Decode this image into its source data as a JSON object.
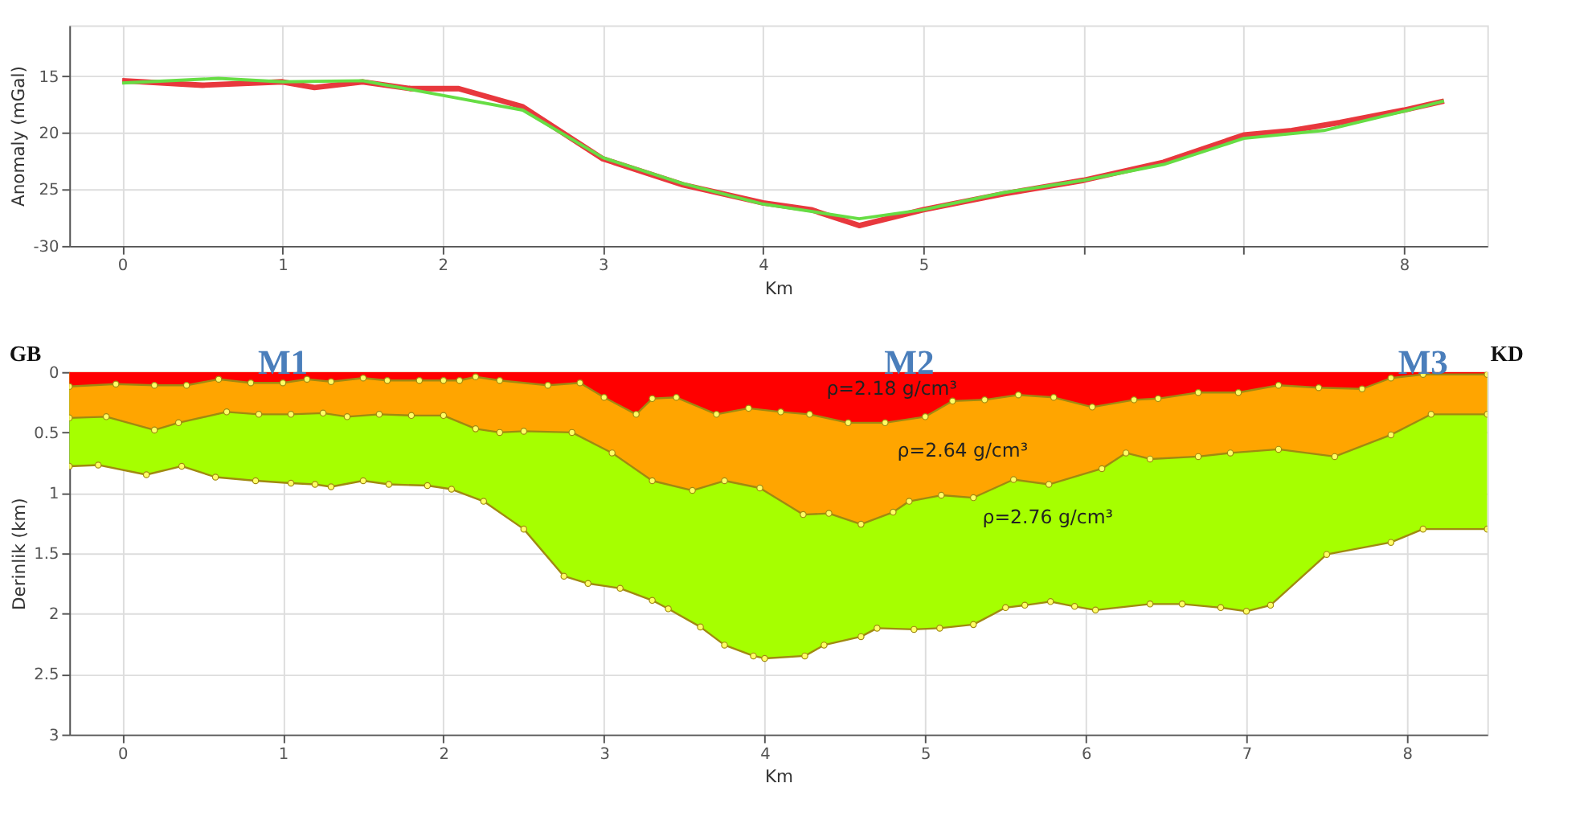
{
  "chart_data": [
    {
      "type": "line",
      "xlabel": "Km",
      "ylabel": "Anomaly (mGal)",
      "xlim": [
        -0.33,
        8.52
      ],
      "ylim": [
        -30,
        -10.5
      ],
      "xticks": [
        0,
        1,
        2,
        3,
        4,
        5,
        {
          "value": 6,
          "label": null
        },
        {
          "value": 7,
          "label": null
        },
        8
      ],
      "yticks": [
        {
          "value": -15,
          "label": "15"
        },
        {
          "value": -20,
          "label": "20"
        },
        {
          "value": -25,
          "label": "25"
        },
        {
          "value": -30,
          "label": "-30"
        }
      ],
      "grid": true,
      "series": [
        {
          "color": "#e8383d",
          "x": [
            0,
            0.5,
            1,
            1.2,
            1.5,
            1.8,
            2.1,
            2.5,
            3,
            3.5,
            4,
            4.3,
            4.6,
            5,
            5.5,
            6,
            6.5,
            7,
            7.3,
            7.6,
            8,
            8.25
          ],
          "values": [
            -15.4,
            -15.8,
            -15.5,
            -16.0,
            -15.5,
            -16.1,
            -16.1,
            -17.7,
            -22.3,
            -24.6,
            -26.2,
            -26.8,
            -28.2,
            -26.8,
            -25.4,
            -24.2,
            -22.6,
            -20.2,
            -19.8,
            -19.1,
            -18.0,
            -17.2
          ]
        },
        {
          "color": "#66dd44",
          "x": [
            0,
            0.6,
            1,
            1.5,
            2,
            2.5,
            3,
            3.5,
            4,
            4.6,
            5,
            5.5,
            6,
            6.5,
            7,
            7.5,
            8,
            8.25
          ],
          "values": [
            -15.6,
            -15.2,
            -15.5,
            -15.4,
            -16.7,
            -18.0,
            -22.2,
            -24.5,
            -26.3,
            -27.6,
            -26.8,
            -25.3,
            -24.2,
            -22.8,
            -20.5,
            -19.8,
            -18.1,
            -17.2
          ]
        }
      ]
    },
    {
      "type": "area",
      "xlabel": "Km",
      "ylabel": "Derinlik (km)",
      "xlim": [
        -0.33,
        8.5
      ],
      "ylim": [
        3,
        0
      ],
      "xticks": [
        0,
        1,
        2,
        3,
        4,
        5,
        6,
        7,
        8
      ],
      "yticks": [
        0,
        0.5,
        1,
        1.5,
        2,
        2.5,
        3
      ],
      "grid": true,
      "marker": "circle",
      "series": [
        {
          "color": "#a6ff00",
          "x": [
            -0.33,
            -0.15,
            0.15,
            0.37,
            0.58,
            0.83,
            1.05,
            1.2,
            1.3,
            1.5,
            1.66,
            1.9,
            2.05,
            2.25,
            2.5,
            2.75,
            2.9,
            3.1,
            3.3,
            3.4,
            3.6,
            3.75,
            3.93,
            4.0,
            4.25,
            4.37,
            4.6,
            4.7,
            4.93,
            5.09,
            5.3,
            5.5,
            5.62,
            5.78,
            5.93,
            6.06,
            6.4,
            6.6,
            6.84,
            7.0,
            7.15,
            7.5,
            7.9,
            8.1,
            8.5
          ],
          "values": [
            0.78,
            0.77,
            0.85,
            0.78,
            0.87,
            0.9,
            0.92,
            0.93,
            0.95,
            0.9,
            0.93,
            0.94,
            0.97,
            1.07,
            1.3,
            1.69,
            1.75,
            1.79,
            1.89,
            1.96,
            2.11,
            2.26,
            2.35,
            2.37,
            2.35,
            2.26,
            2.19,
            2.12,
            2.13,
            2.12,
            2.09,
            1.95,
            1.93,
            1.9,
            1.94,
            1.97,
            1.92,
            1.92,
            1.95,
            1.98,
            1.93,
            1.51,
            1.41,
            1.3,
            1.3
          ]
        },
        {
          "color": "#ffa500",
          "x": [
            -0.33,
            -0.1,
            0.2,
            0.35,
            0.65,
            0.85,
            1.05,
            1.25,
            1.4,
            1.6,
            1.8,
            2.0,
            2.2,
            2.35,
            2.5,
            2.8,
            3.05,
            3.3,
            3.55,
            3.75,
            3.97,
            4.24,
            4.4,
            4.6,
            4.8,
            4.9,
            5.1,
            5.3,
            5.55,
            5.77,
            6.1,
            6.25,
            6.4,
            6.7,
            6.9,
            7.2,
            7.55,
            7.9,
            8.15,
            8.5
          ],
          "values": [
            0.38,
            0.37,
            0.48,
            0.42,
            0.33,
            0.35,
            0.35,
            0.34,
            0.37,
            0.35,
            0.36,
            0.36,
            0.47,
            0.5,
            0.49,
            0.5,
            0.67,
            0.9,
            0.98,
            0.9,
            0.96,
            1.18,
            1.17,
            1.26,
            1.16,
            1.07,
            1.02,
            1.04,
            0.89,
            0.93,
            0.8,
            0.67,
            0.72,
            0.7,
            0.67,
            0.64,
            0.7,
            0.52,
            0.35,
            0.35
          ]
        },
        {
          "color": "#ff0000",
          "x": [
            -0.33,
            -0.04,
            0.2,
            0.4,
            0.6,
            0.8,
            1.0,
            1.15,
            1.3,
            1.5,
            1.65,
            1.85,
            2.0,
            2.1,
            2.2,
            2.35,
            2.65,
            2.85,
            3.0,
            3.2,
            3.3,
            3.45,
            3.7,
            3.9,
            4.1,
            4.28,
            4.52,
            4.75,
            5.0,
            5.17,
            5.37,
            5.58,
            5.8,
            6.04,
            6.3,
            6.45,
            6.7,
            6.95,
            7.2,
            7.45,
            7.72,
            7.9,
            8.1,
            8.5
          ],
          "values": [
            0.12,
            0.1,
            0.11,
            0.11,
            0.06,
            0.09,
            0.09,
            0.06,
            0.08,
            0.05,
            0.07,
            0.07,
            0.07,
            0.07,
            0.04,
            0.07,
            0.11,
            0.09,
            0.21,
            0.35,
            0.22,
            0.21,
            0.35,
            0.3,
            0.33,
            0.35,
            0.42,
            0.42,
            0.37,
            0.24,
            0.23,
            0.19,
            0.21,
            0.29,
            0.23,
            0.22,
            0.17,
            0.17,
            0.11,
            0.13,
            0.14,
            0.05,
            0.02,
            0.02
          ]
        }
      ],
      "annotations": [
        "GB",
        "KD",
        {
          "text": "M1",
          "x": 1.0,
          "y": 0
        },
        {
          "text": "M2",
          "x": 4.9,
          "y": 0
        },
        {
          "text": "M3",
          "x": 8.1,
          "y": 0
        },
        "ρ=2.18 g/cm³",
        "ρ=2.64 g/cm³",
        "ρ=2.76 g/cm³"
      ]
    }
  ]
}
